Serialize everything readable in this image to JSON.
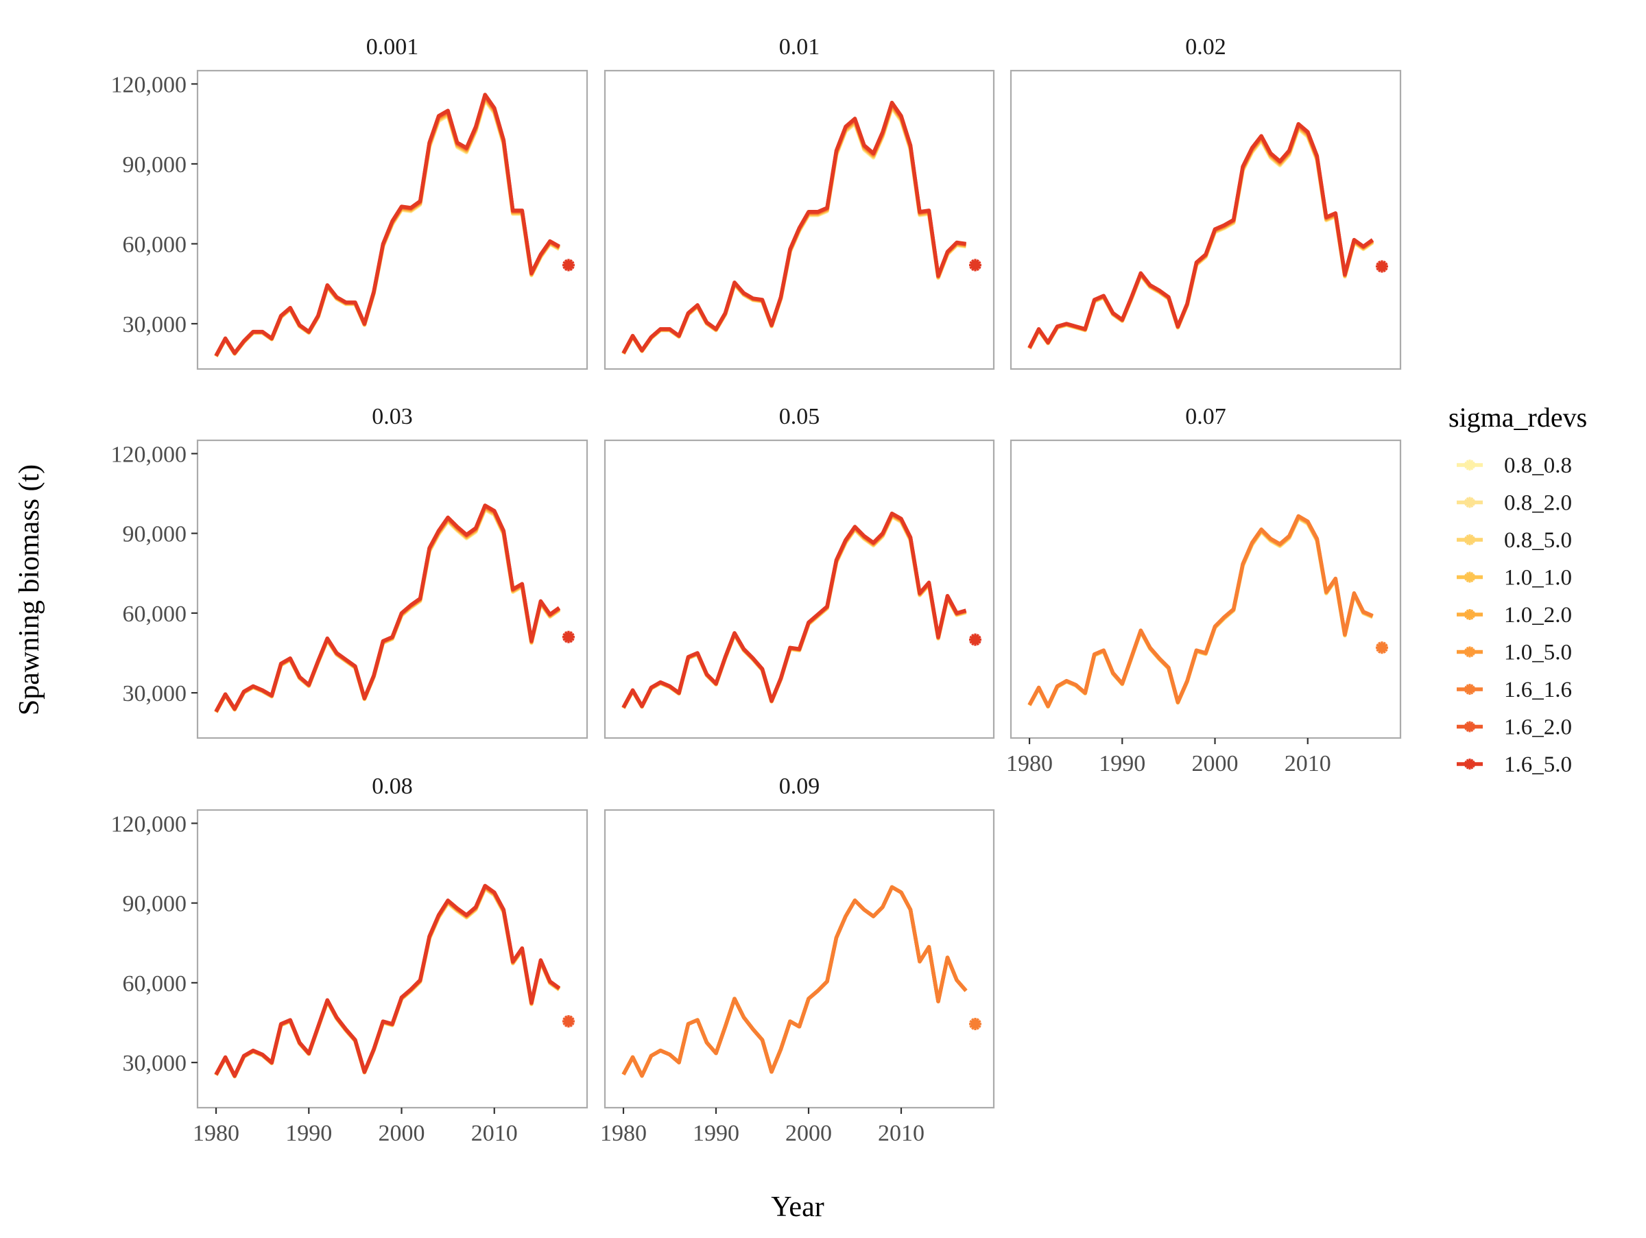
{
  "chart_data": {
    "type": "line",
    "xlabel": "Year",
    "ylabel": "Spawning biomass (t)",
    "legend_title": "sigma_rdevs",
    "legend_position": "right",
    "grid": false,
    "xlim": [
      1978,
      2020
    ],
    "ylim": [
      13000,
      125000
    ],
    "x_ticks": [
      1980,
      1990,
      2000,
      2010
    ],
    "x_tick_labels": [
      "1980",
      "1990",
      "2000",
      "2010"
    ],
    "y_ticks": [
      30000,
      60000,
      90000,
      120000
    ],
    "y_tick_labels": [
      "30,000",
      "60,000",
      "90,000",
      "120,000"
    ],
    "colors": {
      "0.8_0.8": "#fff1a6",
      "0.8_2.0": "#fee391",
      "0.8_5.0": "#fed46e",
      "1.0_1.0": "#fec44f",
      "1.0_2.0": "#feae3d",
      "1.0_5.0": "#fd9a37",
      "1.6_1.6": "#f77f33",
      "1.6_2.0": "#ef5a2b",
      "1.6_5.0": "#e33a23"
    },
    "series_names": [
      "0.8_0.8",
      "0.8_2.0",
      "0.8_5.0",
      "1.0_1.0",
      "1.0_2.0",
      "1.0_5.0",
      "1.6_1.6",
      "1.6_2.0",
      "1.6_5.0"
    ],
    "x": [
      1980,
      1981,
      1982,
      1983,
      1984,
      1985,
      1986,
      1987,
      1988,
      1989,
      1990,
      1991,
      1992,
      1993,
      1994,
      1995,
      1996,
      1997,
      1998,
      1999,
      2000,
      2001,
      2002,
      2003,
      2004,
      2005,
      2006,
      2007,
      2008,
      2009,
      2010,
      2011,
      2012,
      2013,
      2014,
      2015,
      2016,
      2017
    ],
    "panels": [
      {
        "label": "0.001",
        "top_series": "1.6_5.0",
        "spread": 1800,
        "values": [
          18000,
          24500,
          19000,
          23500,
          27000,
          27000,
          24500,
          33000,
          36000,
          29500,
          27000,
          33000,
          44500,
          40000,
          38000,
          38000,
          30000,
          42000,
          60000,
          68500,
          74000,
          73500,
          76000,
          98000,
          108000,
          110000,
          98000,
          96000,
          104000,
          116000,
          111000,
          99000,
          72500,
          72500,
          49000,
          56000,
          61000,
          59000
        ],
        "forecast": {
          "x": 2018,
          "y": 52000,
          "series": "1.6_5.0"
        }
      },
      {
        "label": "0.01",
        "top_series": "1.6_5.0",
        "spread": 1800,
        "values": [
          19000,
          25500,
          20000,
          25000,
          28000,
          28000,
          25500,
          34000,
          37000,
          30500,
          28000,
          34000,
          45500,
          41500,
          39500,
          39000,
          29500,
          40000,
          58000,
          66000,
          72000,
          72000,
          73500,
          95000,
          104000,
          107000,
          97000,
          94000,
          102000,
          113000,
          108000,
          97000,
          72000,
          72500,
          48000,
          57000,
          60500,
          60000
        ],
        "forecast": {
          "x": 2018,
          "y": 52000,
          "series": "1.6_5.0"
        }
      },
      {
        "label": "0.02",
        "top_series": "1.6_5.0",
        "spread": 1800,
        "values": [
          21000,
          28000,
          23000,
          29000,
          30000,
          29000,
          28000,
          39000,
          40500,
          34000,
          31500,
          40000,
          49000,
          44500,
          42500,
          40000,
          29000,
          37500,
          53000,
          56000,
          65500,
          67000,
          69000,
          89000,
          96000,
          100500,
          94000,
          91000,
          95000,
          105000,
          102000,
          93000,
          70000,
          71500,
          48500,
          61500,
          59000,
          61500
        ],
        "forecast": {
          "x": 2018,
          "y": 51500,
          "series": "1.6_5.0"
        }
      },
      {
        "label": "0.03",
        "top_series": "1.6_5.0",
        "spread": 1600,
        "values": [
          23000,
          29500,
          24000,
          30500,
          32500,
          31000,
          29000,
          41000,
          43000,
          36000,
          33000,
          42000,
          50500,
          45000,
          42500,
          40000,
          28000,
          36500,
          49500,
          51000,
          60000,
          63000,
          65500,
          84500,
          91000,
          96000,
          92500,
          89500,
          92000,
          100500,
          98500,
          91000,
          69000,
          71000,
          49500,
          64500,
          59500,
          62000
        ],
        "forecast": {
          "x": 2018,
          "y": 51000,
          "series": "1.6_5.0"
        }
      },
      {
        "label": "0.05",
        "top_series": "1.6_5.0",
        "spread": 1300,
        "values": [
          24500,
          31000,
          25000,
          32000,
          34000,
          32500,
          30000,
          43500,
          45000,
          37000,
          33500,
          43500,
          52500,
          46500,
          43000,
          39000,
          27000,
          35500,
          47000,
          46500,
          56500,
          59500,
          62500,
          80000,
          87500,
          92500,
          89000,
          86500,
          90000,
          97500,
          95500,
          88500,
          67500,
          71500,
          51000,
          66500,
          60000,
          61000
        ],
        "forecast": {
          "x": 2018,
          "y": 50000,
          "series": "1.6_5.0"
        }
      },
      {
        "label": "0.07",
        "top_series": "1.6_1.6",
        "spread": 1000,
        "values": [
          25500,
          32000,
          25000,
          32500,
          34500,
          33000,
          30000,
          44500,
          46000,
          37500,
          33500,
          43500,
          53500,
          47000,
          43000,
          39500,
          26500,
          34500,
          46000,
          45000,
          55000,
          58500,
          61500,
          78500,
          86500,
          91500,
          88000,
          86000,
          89000,
          96500,
          94500,
          88000,
          68000,
          73000,
          52000,
          67500,
          60500,
          59000
        ],
        "forecast": {
          "x": 2018,
          "y": 47000,
          "series": "1.6_1.6"
        }
      },
      {
        "label": "0.08",
        "top_series": "1.6_5.0",
        "spread": 1200,
        "values": [
          25500,
          32000,
          25000,
          32500,
          34500,
          33000,
          30000,
          44500,
          46000,
          37500,
          33500,
          43500,
          53500,
          47000,
          42500,
          38500,
          26500,
          35000,
          45500,
          44500,
          54500,
          57500,
          61000,
          77500,
          85500,
          91000,
          88000,
          85500,
          88500,
          96500,
          94000,
          87500,
          68000,
          73000,
          52500,
          68500,
          60500,
          58000
        ],
        "forecast": {
          "x": 2018,
          "y": 45500,
          "series": "1.6_2.0"
        }
      },
      {
        "label": "0.09",
        "top_series": "1.6_1.6",
        "spread": 0,
        "values": [
          25500,
          32000,
          25000,
          32500,
          34500,
          33000,
          30000,
          44500,
          46000,
          37500,
          33500,
          43500,
          54000,
          47000,
          42500,
          38500,
          26500,
          35000,
          45500,
          43500,
          54000,
          57000,
          60500,
          77000,
          85000,
          91000,
          87500,
          85000,
          88500,
          96000,
          94000,
          87500,
          68000,
          73500,
          53000,
          69500,
          61000,
          57000
        ],
        "forecast": {
          "x": 2018,
          "y": 44500,
          "series": "1.6_1.6"
        }
      }
    ]
  }
}
